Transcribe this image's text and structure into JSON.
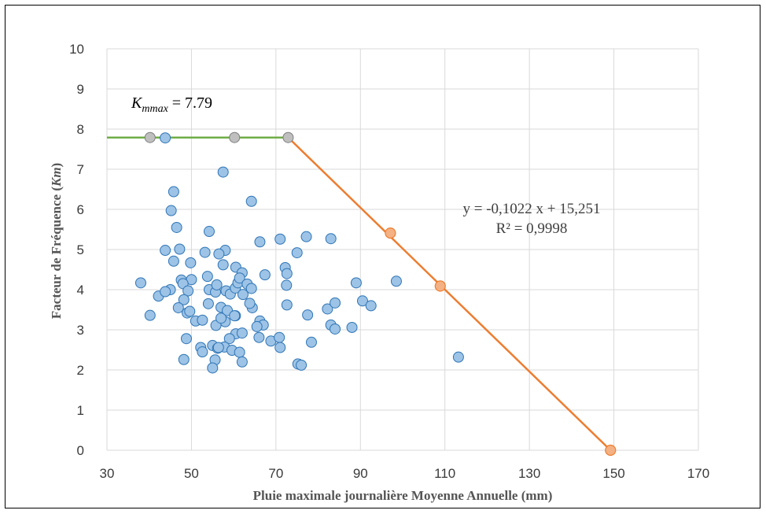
{
  "chart_data": {
    "type": "scatter",
    "xlabel": "Pluie maximale journalière Moyenne Annuelle (mm)",
    "ylabel_prefix": "Facteur de Fréquence (",
    "ylabel_var": "Km",
    "ylabel_suffix": ")",
    "xlim": [
      30,
      170
    ],
    "ylim": [
      0,
      10
    ],
    "x_ticks": [
      "30",
      "50",
      "70",
      "90",
      "110",
      "130",
      "150",
      "170"
    ],
    "y_ticks": [
      "0",
      "1",
      "2",
      "3",
      "4",
      "5",
      "6",
      "7",
      "8",
      "9",
      "10"
    ],
    "grid": true,
    "colors": {
      "points_fill": "#9dc3e6",
      "points_stroke": "#2e75b6",
      "kmax_line": "#70ad47",
      "regression_line": "#ed7d31",
      "regression_points_fill": "#f4b183",
      "kmax_points_fill": "#bfbfbf",
      "grid": "#d9d9d9"
    },
    "kmax_label": {
      "symbol": "K",
      "subscript": "mmax",
      "value_text": " = 7.79"
    },
    "equation": "y = -0,1022 x + 15,251",
    "r_squared": "R² = 0,9998",
    "kmax_line": {
      "x": [
        30,
        72.9
      ],
      "y": [
        7.79,
        7.79
      ]
    },
    "regression_line": {
      "x": [
        72.9,
        149.2
      ],
      "y": [
        7.79,
        0
      ]
    },
    "regression_points": [
      {
        "x": 97.1,
        "y": 5.41
      },
      {
        "x": 108.9,
        "y": 4.09
      },
      {
        "x": 149.2,
        "y": 0
      }
    ],
    "kmax_points": [
      {
        "x": 40.2,
        "y": 7.79
      },
      {
        "x": 60.2,
        "y": 7.79
      },
      {
        "x": 72.9,
        "y": 7.79
      }
    ],
    "series": [
      {
        "x": [
          43.8,
          57.5,
          45.8,
          64.2,
          45.2,
          46.5,
          54.2,
          47.2,
          58.0,
          56.5,
          43.8,
          45.8,
          49.8,
          57.5,
          53.2,
          60.5,
          66.2,
          71.0,
          72.2,
          75.0,
          77.2,
          83.0,
          72.6,
          62.0,
          67.4,
          38.0,
          47.6,
          50.0,
          42.2,
          45.0,
          48.0,
          43.8,
          49.2,
          48.2,
          53.8,
          54.2,
          55.7,
          56.0,
          58.2,
          59.2,
          60.4,
          61.0,
          61.4,
          62.2,
          63.2,
          64.2,
          64.4,
          60.4,
          72.5,
          89.0,
          98.5,
          46.9,
          54.0,
          57.0,
          58.5,
          49.0,
          51.0,
          49.6,
          60.5,
          58.0,
          60.2,
          63.8,
          66.2,
          67.0,
          72.6,
          77.5,
          82.2,
          83.0,
          84.0,
          84.0,
          88.0,
          90.5,
          92.5,
          52.6,
          55.8,
          57.0,
          59.0,
          62.0,
          65.5,
          66.0,
          68.8,
          70.8,
          71.0,
          52.2,
          52.6,
          55.0,
          56.2,
          57.8,
          59.6,
          61.4,
          48.8,
          56.4,
          55.6,
          48.2,
          62.0,
          75.2,
          76.0,
          55.0,
          78.4,
          113.2,
          40.2
        ],
        "y": [
          7.78,
          6.93,
          6.44,
          6.2,
          5.97,
          5.55,
          5.45,
          5.01,
          4.98,
          4.89,
          4.98,
          4.71,
          4.67,
          4.62,
          4.93,
          4.56,
          5.19,
          5.26,
          4.55,
          4.92,
          5.32,
          5.27,
          4.4,
          4.42,
          4.37,
          4.17,
          4.24,
          4.25,
          3.84,
          4.0,
          4.15,
          3.95,
          3.97,
          3.75,
          4.33,
          4.0,
          3.94,
          4.12,
          3.97,
          3.89,
          4.04,
          4.17,
          4.29,
          3.88,
          4.14,
          4.03,
          3.55,
          3.35,
          4.11,
          4.17,
          4.21,
          3.55,
          3.65,
          3.56,
          3.48,
          3.42,
          3.22,
          3.46,
          2.9,
          3.2,
          3.35,
          3.66,
          3.22,
          3.12,
          3.62,
          3.37,
          3.52,
          3.12,
          3.02,
          3.67,
          3.06,
          3.72,
          3.6,
          3.24,
          3.11,
          3.29,
          2.78,
          2.92,
          3.08,
          2.81,
          2.72,
          2.81,
          2.56,
          2.56,
          2.45,
          2.61,
          2.54,
          2.57,
          2.49,
          2.44,
          2.78,
          2.56,
          2.25,
          2.26,
          2.2,
          2.15,
          2.12,
          2.05,
          2.69,
          2.32,
          3.36
        ]
      }
    ]
  }
}
